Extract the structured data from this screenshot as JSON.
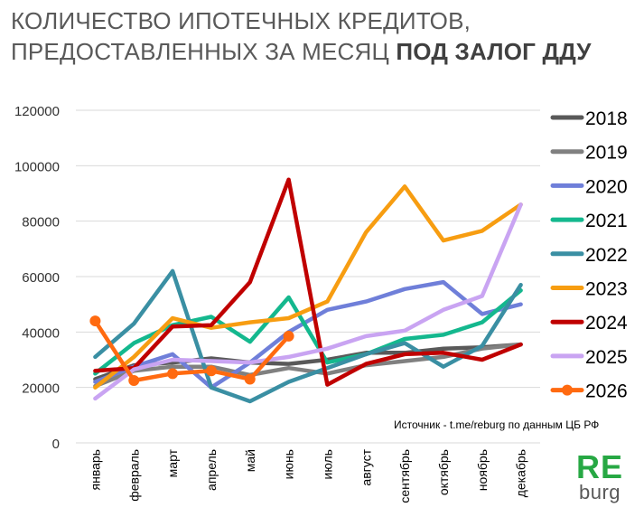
{
  "title": {
    "line1": "КОЛИЧЕСТВО ИПОТЕЧНЫХ КРЕДИТОВ,",
    "line2_regular": "ПРЕДОСТАВЛЕННЫХ ЗА МЕСЯЦ ",
    "line2_bold": "ПОД ЗАЛОГ ДДУ"
  },
  "source_note": "Источник  - t.me/reburg по данным  ЦБ РФ",
  "logo": {
    "top": "RE",
    "bottom": "burg"
  },
  "chart_data": {
    "type": "line",
    "title": "КОЛИЧЕСТВО ИПОТЕЧНЫХ КРЕДИТОВ, ПРЕДОСТАВЛЕННЫХ ЗА МЕСЯЦ ПОД ЗАЛОГ ДДУ",
    "xlabel": "",
    "ylabel": "",
    "ylim": [
      0,
      120000
    ],
    "yticks": [
      0,
      20000,
      40000,
      60000,
      80000,
      100000,
      120000
    ],
    "grid": "horizontal",
    "legend_position": "right",
    "categories": [
      "январь",
      "февраль",
      "март",
      "апрель",
      "май",
      "июнь",
      "июль",
      "август",
      "сентябрь",
      "октябрь",
      "ноябрь",
      "декабрь"
    ],
    "series": [
      {
        "name": "2018",
        "color": "#595959",
        "marker": false,
        "values": [
          23000,
          28000,
          29000,
          30500,
          29000,
          28500,
          30000,
          32500,
          32500,
          34000,
          34500,
          35500
        ]
      },
      {
        "name": "2019",
        "color": "#808080",
        "marker": false,
        "values": [
          20500,
          26000,
          27500,
          27500,
          24500,
          27000,
          25000,
          28000,
          29500,
          31000,
          34000,
          35500
        ]
      },
      {
        "name": "2020",
        "color": "#6f7fd9",
        "marker": false,
        "values": [
          22000,
          27500,
          32000,
          20000,
          29000,
          40000,
          48000,
          51000,
          55500,
          58000,
          46500,
          50000
        ]
      },
      {
        "name": "2021",
        "color": "#14b88e",
        "marker": false,
        "values": [
          25000,
          36000,
          42500,
          45500,
          36500,
          52500,
          29000,
          32000,
          37500,
          39000,
          43500,
          55000
        ]
      },
      {
        "name": "2022",
        "color": "#3a8fa3",
        "marker": false,
        "values": [
          31000,
          43000,
          62000,
          20000,
          15000,
          22000,
          27000,
          32000,
          36000,
          27500,
          35000,
          57000
        ]
      },
      {
        "name": "2023",
        "color": "#f79d11",
        "marker": false,
        "values": [
          20000,
          31000,
          45000,
          41500,
          43500,
          45000,
          51000,
          76000,
          92500,
          73000,
          76500,
          86000
        ]
      },
      {
        "name": "2024",
        "color": "#c00000",
        "marker": false,
        "values": [
          26000,
          27000,
          42000,
          42500,
          58000,
          95000,
          21000,
          28500,
          32000,
          32500,
          30000,
          35500
        ]
      },
      {
        "name": "2025",
        "color": "#c9a4f2",
        "marker": false,
        "values": [
          16000,
          26500,
          30000,
          29500,
          29000,
          31000,
          34000,
          38500,
          40500,
          48000,
          53000,
          86000
        ]
      },
      {
        "name": "2026",
        "color": "#ff6a10",
        "marker": true,
        "values": [
          44000,
          22500,
          25000,
          26000,
          23000,
          38500,
          null,
          null,
          null,
          null,
          null,
          null
        ]
      }
    ]
  }
}
